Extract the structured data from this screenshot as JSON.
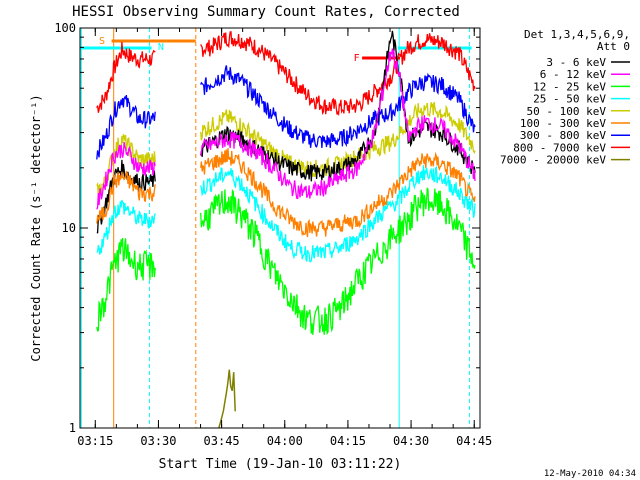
{
  "chart_data": {
    "type": "line",
    "title": "HESSI Observing Summary Count Rates, Corrected",
    "xlabel": "Start Time (19-Jan-10 03:11:22)",
    "ylabel": "Corrected Count Rate (s⁻¹ detector⁻¹)",
    "yscale": "log",
    "ylim": [
      1,
      100
    ],
    "xlim_minutes": [
      0,
      95
    ],
    "x_ticks": [
      "03:15",
      "03:30",
      "03:45",
      "04:00",
      "04:15",
      "04:30",
      "04:45"
    ],
    "y_ticks": [
      "1",
      "10",
      "100"
    ],
    "legend_title_1": "Det 1,3,4,5,6,9,",
    "legend_title_2": "Att 0",
    "legend_placement": "right",
    "timestamp": "12-May-2010 04:34",
    "series": [
      {
        "name": "3 - 6 keV",
        "color": "#000000",
        "x": [
          4,
          6,
          8,
          10,
          12,
          14,
          17,
          35,
          38,
          42,
          46,
          50,
          54,
          58,
          62,
          66,
          70,
          74,
          76,
          78,
          80,
          82,
          86,
          90,
          94
        ],
        "y": [
          10,
          13,
          18,
          20,
          18,
          17,
          17,
          30,
          28,
          25,
          22,
          20,
          19,
          19,
          20,
          22,
          30,
          95,
          60,
          28,
          30,
          32,
          30,
          25,
          19
        ]
      },
      {
        "name": "6 - 12 keV",
        "color": "#ff00ff",
        "x": [
          4,
          6,
          8,
          10,
          12,
          14,
          17,
          35,
          38,
          42,
          46,
          50,
          54,
          58,
          62,
          66,
          70,
          74,
          76,
          78,
          80,
          82,
          86,
          90,
          94
        ],
        "y": [
          13,
          17,
          23,
          25,
          23,
          20,
          20,
          28,
          27,
          24,
          20,
          16,
          15,
          16,
          18,
          20,
          30,
          80,
          55,
          28,
          32,
          34,
          32,
          26,
          18
        ]
      },
      {
        "name": "12 - 25 keV",
        "color": "#00ff00",
        "x": [
          4,
          6,
          8,
          10,
          12,
          14,
          17,
          35,
          38,
          42,
          46,
          50,
          54,
          58,
          62,
          66,
          70,
          74,
          76,
          78,
          80,
          82,
          86,
          90,
          94
        ],
        "y": [
          3.5,
          4.5,
          6.5,
          8,
          7,
          6.5,
          6.5,
          14,
          12,
          9,
          6,
          4.5,
          3.5,
          3.5,
          4,
          5.5,
          7,
          9,
          10,
          11,
          13,
          14,
          13,
          10,
          6.5
        ]
      },
      {
        "name": "25 - 50 keV",
        "color": "#00ffff",
        "x": [
          4,
          6,
          8,
          10,
          12,
          14,
          17,
          35,
          38,
          42,
          46,
          50,
          54,
          58,
          62,
          66,
          70,
          74,
          76,
          78,
          80,
          82,
          86,
          90,
          94
        ],
        "y": [
          7.5,
          9,
          12,
          13,
          12,
          11,
          11,
          19,
          17,
          13,
          10,
          8,
          7.5,
          7.5,
          8,
          9,
          11,
          13,
          14,
          16,
          18,
          19,
          18,
          15,
          12
        ]
      },
      {
        "name": "50 - 100 keV",
        "color": "#cccc00",
        "x": [
          4,
          6,
          8,
          10,
          12,
          14,
          17,
          35,
          38,
          42,
          46,
          50,
          54,
          58,
          62,
          66,
          70,
          74,
          76,
          78,
          80,
          82,
          86,
          90,
          94
        ],
        "y": [
          15,
          17,
          24,
          28,
          25,
          22,
          22,
          36,
          33,
          28,
          24,
          21,
          20,
          20,
          21,
          23,
          25,
          27,
          30,
          34,
          38,
          40,
          38,
          33,
          25
        ]
      },
      {
        "name": "100 - 300 keV",
        "color": "#ff8000",
        "x": [
          4,
          6,
          8,
          10,
          12,
          14,
          17,
          35,
          38,
          42,
          46,
          50,
          54,
          58,
          62,
          66,
          70,
          74,
          76,
          78,
          80,
          82,
          86,
          90,
          94
        ],
        "y": [
          11,
          12,
          17,
          18,
          17,
          15,
          15,
          23,
          21,
          17,
          13,
          11,
          10,
          10,
          10.5,
          11,
          13,
          15,
          17,
          19,
          21,
          22,
          21,
          18,
          13
        ]
      },
      {
        "name": "300 - 800 keV",
        "color": "#0000ff",
        "x": [
          4,
          6,
          8,
          10,
          12,
          14,
          17,
          35,
          38,
          42,
          46,
          50,
          54,
          58,
          62,
          66,
          70,
          74,
          76,
          78,
          80,
          82,
          86,
          90,
          94
        ],
        "y": [
          24,
          28,
          38,
          45,
          40,
          35,
          35,
          60,
          55,
          45,
          37,
          31,
          28,
          27,
          28,
          31,
          35,
          38,
          42,
          48,
          52,
          54,
          52,
          44,
          30
        ]
      },
      {
        "name": "800 - 7000 keV",
        "color": "#ff0000",
        "x": [
          4,
          6,
          8,
          10,
          12,
          14,
          17,
          30,
          31,
          35,
          38,
          42,
          46,
          50,
          54,
          58,
          62,
          66,
          70,
          74,
          76,
          78,
          80,
          82,
          86,
          90,
          94
        ],
        "y": [
          40,
          45,
          62,
          78,
          72,
          70,
          70,
          80,
          80,
          90,
          88,
          80,
          68,
          56,
          46,
          41,
          40,
          41,
          48,
          58,
          70,
          80,
          85,
          88,
          85,
          75,
          50
        ]
      },
      {
        "name": "7000 - 20000 keV",
        "color": "#808000",
        "x": [
          33,
          34,
          35,
          35.5,
          36,
          36.5,
          37
        ],
        "y": [
          1,
          1.2,
          1.6,
          2,
          1.4,
          1.9,
          1
        ]
      }
    ],
    "annotations": [
      {
        "text": "S",
        "color": "#ff8000"
      },
      {
        "text": "N",
        "color": "#00ffff"
      },
      {
        "text": "F",
        "color": "#ff0000"
      }
    ]
  }
}
